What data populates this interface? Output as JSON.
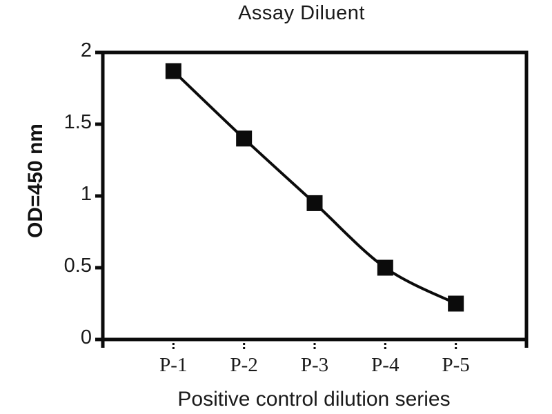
{
  "page": {
    "background": "#ffffff"
  },
  "chart_data": {
    "type": "line",
    "title": "Assay Diluent",
    "xlabel": "Positive control dilution series",
    "ylabel": "OD=450 nm",
    "categories": [
      "P-1",
      "P-2",
      "P-3",
      "P-4",
      "P-5"
    ],
    "values": [
      1.87,
      1.4,
      0.95,
      0.5,
      0.25
    ],
    "ylim": [
      0,
      2
    ],
    "y_ticks": [
      0,
      0.5,
      1,
      1.5,
      2
    ],
    "y_tick_labels": [
      "0",
      "0.5",
      "1",
      "1.5",
      "2"
    ],
    "grid": false,
    "legend": "none",
    "smooth_line": true,
    "marker": "filled-square",
    "colors": {
      "line": "#0b0b0b",
      "marker": "#0b0b0b",
      "axis": "#0b0b0b",
      "text": "#1a1a1a",
      "background": "#ffffff"
    }
  }
}
